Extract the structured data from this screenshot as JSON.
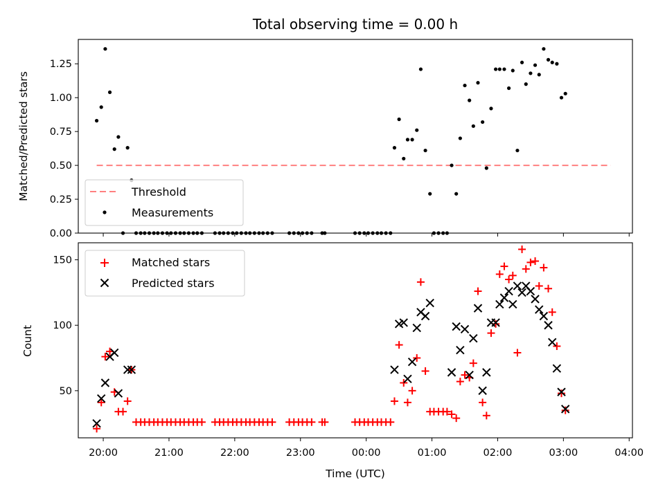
{
  "colors": {
    "matched": "#ff0000",
    "predicted": "#000000",
    "threshold": "#ff7f7f",
    "measurements": "#000000"
  },
  "chart_data": [
    {
      "type": "scatter",
      "title": "Total observing time = 0.00 h",
      "xlabel": "",
      "ylabel": "Matched/Predicted stars",
      "x_unit": "hours_since_19:00_UTC",
      "xlim": [
        0.62,
        9.05
      ],
      "ylim": [
        0.0,
        1.43
      ],
      "yticks": [
        0.0,
        0.25,
        0.5,
        0.75,
        1.0,
        1.25
      ],
      "ytick_labels": [
        "0.00",
        "0.25",
        "0.50",
        "0.75",
        "1.00",
        "1.25"
      ],
      "legend_location": "lower left",
      "legend": [
        "Threshold",
        "Measurements"
      ],
      "threshold": {
        "name": "Threshold",
        "value": 0.5,
        "x_start": 0.9,
        "x_end": 8.72
      },
      "series": [
        {
          "name": "Measurements",
          "points": [
            [
              0.9,
              0.83
            ],
            [
              0.97,
              0.93
            ],
            [
              1.03,
              1.36
            ],
            [
              1.1,
              1.04
            ],
            [
              1.17,
              0.62
            ],
            [
              1.23,
              0.71
            ],
            [
              1.3,
              0.0
            ],
            [
              1.37,
              0.63
            ],
            [
              1.43,
              0.39
            ],
            [
              1.5,
              0.0
            ],
            [
              1.57,
              0.0
            ],
            [
              1.63,
              0.0
            ],
            [
              1.7,
              0.0
            ],
            [
              1.77,
              0.0
            ],
            [
              1.83,
              0.0
            ],
            [
              1.9,
              0.0
            ],
            [
              1.97,
              0.0
            ],
            [
              2.03,
              0.0
            ],
            [
              2.1,
              0.0
            ],
            [
              2.17,
              0.0
            ],
            [
              2.23,
              0.0
            ],
            [
              2.3,
              0.0
            ],
            [
              2.37,
              0.0
            ],
            [
              2.43,
              0.0
            ],
            [
              2.5,
              0.0
            ],
            [
              2.7,
              0.0
            ],
            [
              2.77,
              0.0
            ],
            [
              2.83,
              0.0
            ],
            [
              2.9,
              0.0
            ],
            [
              2.97,
              0.0
            ],
            [
              3.03,
              0.0
            ],
            [
              3.1,
              0.0
            ],
            [
              3.17,
              0.0
            ],
            [
              3.23,
              0.0
            ],
            [
              3.3,
              0.0
            ],
            [
              3.37,
              0.0
            ],
            [
              3.43,
              0.0
            ],
            [
              3.5,
              0.0
            ],
            [
              3.57,
              0.0
            ],
            [
              3.83,
              0.0
            ],
            [
              3.9,
              0.0
            ],
            [
              3.97,
              0.0
            ],
            [
              4.03,
              0.0
            ],
            [
              4.1,
              0.0
            ],
            [
              4.17,
              0.0
            ],
            [
              4.33,
              0.0
            ],
            [
              4.37,
              0.0
            ],
            [
              4.83,
              0.0
            ],
            [
              4.9,
              0.0
            ],
            [
              4.97,
              0.0
            ],
            [
              5.03,
              0.0
            ],
            [
              5.1,
              0.0
            ],
            [
              5.17,
              0.0
            ],
            [
              5.23,
              0.0
            ],
            [
              5.3,
              0.0
            ],
            [
              5.37,
              0.0
            ],
            [
              5.43,
              0.63
            ],
            [
              5.5,
              0.84
            ],
            [
              5.57,
              0.55
            ],
            [
              5.63,
              0.69
            ],
            [
              5.7,
              0.69
            ],
            [
              5.77,
              0.76
            ],
            [
              5.83,
              1.21
            ],
            [
              5.9,
              0.61
            ],
            [
              5.97,
              0.29
            ],
            [
              6.03,
              0.0
            ],
            [
              6.1,
              0.0
            ],
            [
              6.17,
              0.0
            ],
            [
              6.23,
              0.0
            ],
            [
              6.3,
              0.5
            ],
            [
              6.37,
              0.29
            ],
            [
              6.43,
              0.7
            ],
            [
              6.5,
              1.09
            ],
            [
              6.57,
              0.98
            ],
            [
              6.63,
              0.79
            ],
            [
              6.7,
              1.11
            ],
            [
              6.77,
              0.82
            ],
            [
              6.83,
              0.48
            ],
            [
              6.9,
              0.92
            ],
            [
              6.97,
              1.21
            ],
            [
              7.03,
              1.21
            ],
            [
              7.1,
              1.21
            ],
            [
              7.17,
              1.07
            ],
            [
              7.23,
              1.2
            ],
            [
              7.3,
              0.61
            ],
            [
              7.37,
              1.26
            ],
            [
              7.43,
              1.1
            ],
            [
              7.5,
              1.18
            ],
            [
              7.57,
              1.24
            ],
            [
              7.63,
              1.17
            ],
            [
              7.7,
              1.36
            ],
            [
              7.77,
              1.28
            ],
            [
              7.83,
              1.26
            ],
            [
              7.9,
              1.25
            ],
            [
              7.97,
              1.0
            ],
            [
              8.03,
              1.03
            ]
          ]
        }
      ]
    },
    {
      "type": "scatter",
      "title": "",
      "xlabel": "Time (UTC)",
      "ylabel": "Count",
      "x_unit": "hours_since_19:00_UTC",
      "xlim": [
        0.62,
        9.05
      ],
      "ylim": [
        14,
        163
      ],
      "yticks": [
        50,
        100,
        150
      ],
      "ytick_labels": [
        "50",
        "100",
        "150"
      ],
      "xticks": [
        1,
        2,
        3,
        4,
        5,
        6,
        7,
        8,
        9
      ],
      "xtick_labels": [
        "20:00",
        "21:00",
        "22:00",
        "23:00",
        "00:00",
        "01:00",
        "02:00",
        "03:00",
        "04:00"
      ],
      "legend_location": "upper left",
      "legend": [
        "Matched stars",
        "Predicted stars"
      ],
      "series": [
        {
          "name": "Matched stars",
          "marker": "+",
          "points": [
            [
              0.9,
              21
            ],
            [
              0.97,
              41
            ],
            [
              1.03,
              76
            ],
            [
              1.1,
              80
            ],
            [
              1.17,
              49
            ],
            [
              1.23,
              34
            ],
            [
              1.3,
              34
            ],
            [
              1.37,
              42
            ],
            [
              1.43,
              66
            ],
            [
              1.5,
              26
            ],
            [
              1.57,
              26
            ],
            [
              1.63,
              26
            ],
            [
              1.7,
              26
            ],
            [
              1.77,
              26
            ],
            [
              1.83,
              26
            ],
            [
              1.9,
              26
            ],
            [
              1.97,
              26
            ],
            [
              2.03,
              26
            ],
            [
              2.1,
              26
            ],
            [
              2.17,
              26
            ],
            [
              2.23,
              26
            ],
            [
              2.3,
              26
            ],
            [
              2.37,
              26
            ],
            [
              2.43,
              26
            ],
            [
              2.5,
              26
            ],
            [
              2.7,
              26
            ],
            [
              2.77,
              26
            ],
            [
              2.83,
              26
            ],
            [
              2.9,
              26
            ],
            [
              2.97,
              26
            ],
            [
              3.03,
              26
            ],
            [
              3.1,
              26
            ],
            [
              3.17,
              26
            ],
            [
              3.23,
              26
            ],
            [
              3.3,
              26
            ],
            [
              3.37,
              26
            ],
            [
              3.43,
              26
            ],
            [
              3.5,
              26
            ],
            [
              3.57,
              26
            ],
            [
              3.83,
              26
            ],
            [
              3.9,
              26
            ],
            [
              3.97,
              26
            ],
            [
              4.03,
              26
            ],
            [
              4.1,
              26
            ],
            [
              4.17,
              26
            ],
            [
              4.33,
              26
            ],
            [
              4.37,
              26
            ],
            [
              4.83,
              26
            ],
            [
              4.9,
              26
            ],
            [
              4.97,
              26
            ],
            [
              5.03,
              26
            ],
            [
              5.1,
              26
            ],
            [
              5.17,
              26
            ],
            [
              5.23,
              26
            ],
            [
              5.3,
              26
            ],
            [
              5.37,
              26
            ],
            [
              5.43,
              42
            ],
            [
              5.5,
              85
            ],
            [
              5.57,
              56
            ],
            [
              5.63,
              41
            ],
            [
              5.7,
              50
            ],
            [
              5.77,
              75
            ],
            [
              5.83,
              133
            ],
            [
              5.9,
              65
            ],
            [
              5.97,
              34
            ],
            [
              6.03,
              34
            ],
            [
              6.1,
              34
            ],
            [
              6.17,
              34
            ],
            [
              6.23,
              34
            ],
            [
              6.3,
              32
            ],
            [
              6.37,
              29
            ],
            [
              6.43,
              57
            ],
            [
              6.5,
              62
            ],
            [
              6.57,
              60
            ],
            [
              6.63,
              71
            ],
            [
              6.7,
              126
            ],
            [
              6.77,
              41
            ],
            [
              6.83,
              31
            ],
            [
              6.9,
              94
            ],
            [
              6.97,
              101
            ],
            [
              7.03,
              139
            ],
            [
              7.1,
              145
            ],
            [
              7.17,
              135
            ],
            [
              7.23,
              138
            ],
            [
              7.3,
              79
            ],
            [
              7.37,
              158
            ],
            [
              7.43,
              143
            ],
            [
              7.5,
              148
            ],
            [
              7.57,
              149
            ],
            [
              7.63,
              130
            ],
            [
              7.7,
              144
            ],
            [
              7.77,
              128
            ],
            [
              7.83,
              110
            ],
            [
              7.9,
              84
            ],
            [
              7.97,
              48
            ],
            [
              8.03,
              35
            ]
          ]
        },
        {
          "name": "Predicted stars",
          "marker": "x",
          "points": [
            [
              0.9,
              25
            ],
            [
              0.97,
              44
            ],
            [
              1.03,
              56
            ],
            [
              1.1,
              76
            ],
            [
              1.17,
              79
            ],
            [
              1.23,
              48
            ],
            [
              1.37,
              66
            ],
            [
              1.43,
              66
            ],
            [
              5.43,
              66
            ],
            [
              5.5,
              101
            ],
            [
              5.57,
              102
            ],
            [
              5.63,
              59
            ],
            [
              5.7,
              72
            ],
            [
              5.77,
              98
            ],
            [
              5.83,
              110
            ],
            [
              5.9,
              107
            ],
            [
              5.97,
              117
            ],
            [
              6.3,
              64
            ],
            [
              6.37,
              99
            ],
            [
              6.43,
              81
            ],
            [
              6.5,
              97
            ],
            [
              6.57,
              62
            ],
            [
              6.63,
              90
            ],
            [
              6.7,
              113
            ],
            [
              6.77,
              50
            ],
            [
              6.83,
              64
            ],
            [
              6.9,
              102
            ],
            [
              6.97,
              102
            ],
            [
              7.03,
              116
            ],
            [
              7.1,
              121
            ],
            [
              7.17,
              126
            ],
            [
              7.23,
              116
            ],
            [
              7.3,
              130
            ],
            [
              7.37,
              125
            ],
            [
              7.43,
              130
            ],
            [
              7.5,
              126
            ],
            [
              7.57,
              120
            ],
            [
              7.63,
              112
            ],
            [
              7.7,
              107
            ],
            [
              7.77,
              100
            ],
            [
              7.83,
              87
            ],
            [
              7.9,
              67
            ],
            [
              7.97,
              49
            ],
            [
              8.03,
              36
            ]
          ]
        }
      ]
    }
  ]
}
